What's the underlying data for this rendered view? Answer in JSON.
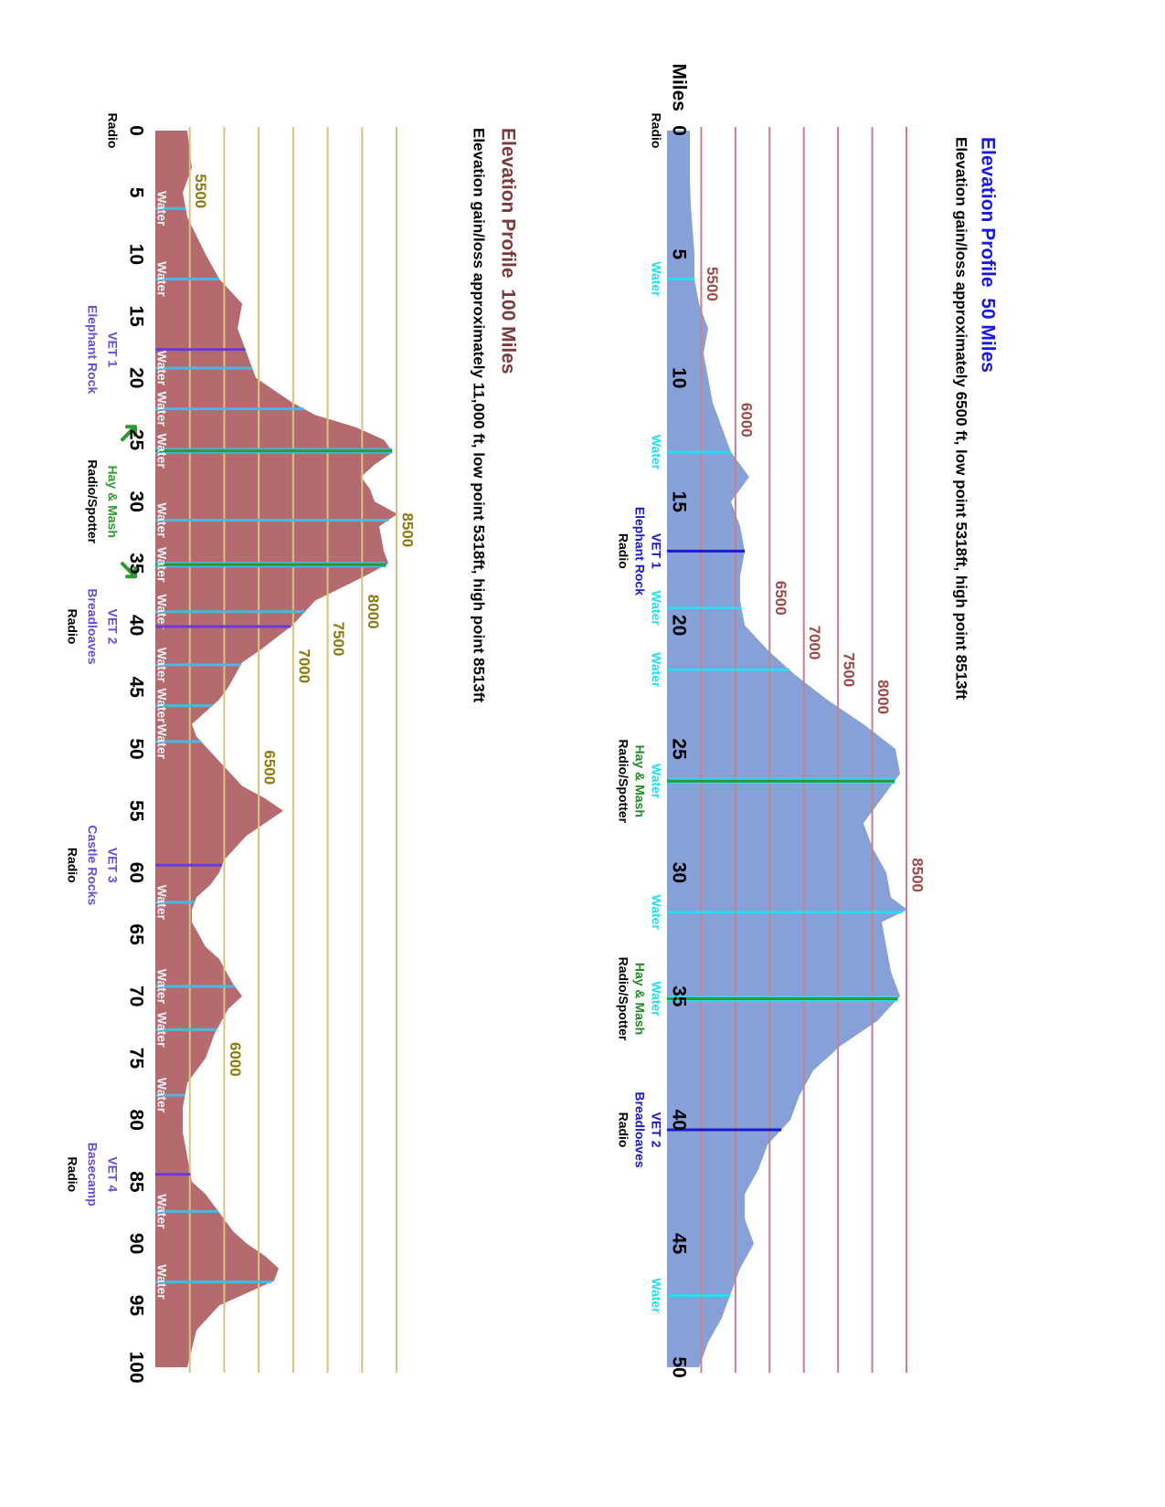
{
  "chart_data": [
    {
      "type": "area",
      "title": "Elevation Profile  50 Miles",
      "subtitle": "Elevation gain/loss approximately 6500 ft, low point 5318ft, high point 8513ft",
      "xlabel": "Miles",
      "color": "#87a0d8",
      "grid_color": "#c8808a",
      "grid": true,
      "title_color": "#1818e0",
      "tick_label_color": "#a04848",
      "line_colors": {
        "water": "#30d8f0",
        "hay": "#2a9a2a",
        "vet": "#1a1acc"
      },
      "label_colors": {
        "water": "#1ee0f0",
        "hay": "#228a22",
        "vet": "#1a1acc",
        "radio": "#000000"
      },
      "xlim": [
        0,
        50
      ],
      "xticks": [
        0,
        5,
        10,
        15,
        20,
        25,
        30,
        35,
        40,
        45,
        50
      ],
      "ylim": [
        5000,
        8500
      ],
      "yticks": [
        5500,
        6000,
        6500,
        7000,
        7500,
        8000,
        8500
      ],
      "x": [
        0,
        1,
        2,
        3,
        4,
        5,
        6,
        7,
        8,
        9,
        10,
        11,
        12,
        13,
        14,
        15,
        16,
        17,
        18,
        19,
        20,
        21,
        22,
        23,
        24,
        25,
        26,
        27,
        28,
        29,
        30,
        31,
        31.5,
        32,
        33,
        34,
        35,
        36,
        37,
        38,
        39,
        40,
        41,
        42,
        43,
        44,
        45,
        46,
        47,
        48,
        49,
        50
      ],
      "values": [
        5334,
        5334,
        5334,
        5347,
        5374,
        5401,
        5401,
        5468,
        5601,
        5534,
        5601,
        5668,
        5802,
        5935,
        6202,
        5935,
        6069,
        6136,
        6069,
        6069,
        6136,
        6470,
        6870,
        7338,
        7872,
        8340,
        8407,
        8140,
        7872,
        8006,
        8206,
        8273,
        8513,
        8140,
        8206,
        8273,
        8407,
        8073,
        7538,
        7138,
        6937,
        6804,
        6470,
        6336,
        6136,
        6136,
        6270,
        6069,
        5935,
        5802,
        5601,
        5468
      ],
      "markers": [
        {
          "mile": 0,
          "kind": "radio",
          "labels": [
            {
              "text": "Radio",
              "kind": "radio"
            }
          ]
        },
        {
          "mile": 6,
          "kind": "water",
          "labels": [
            {
              "text": "Water",
              "kind": "water"
            }
          ]
        },
        {
          "mile": 13,
          "kind": "water",
          "labels": [
            {
              "text": "Water",
              "kind": "water"
            }
          ]
        },
        {
          "mile": 17,
          "kind": "vet",
          "labels": [
            {
              "text": "VET 1",
              "kind": "vet"
            },
            {
              "text": "Elephant Rock",
              "kind": "vet"
            },
            {
              "text": "Radio",
              "kind": "radio"
            }
          ]
        },
        {
          "mile": 19.3,
          "kind": "water",
          "labels": [
            {
              "text": "Water",
              "kind": "water"
            }
          ]
        },
        {
          "mile": 21.8,
          "kind": "water",
          "labels": [
            {
              "text": "Water",
              "kind": "water"
            }
          ]
        },
        {
          "mile": 26.3,
          "kind": "hay",
          "labels": [
            {
              "text": "Water",
              "kind": "water"
            },
            {
              "text": "Hay & Mash",
              "kind": "hay"
            },
            {
              "text": "Radio/Spotter",
              "kind": "radio"
            }
          ]
        },
        {
          "mile": 31.6,
          "kind": "water",
          "labels": [
            {
              "text": "Water",
              "kind": "water"
            }
          ]
        },
        {
          "mile": 35.1,
          "kind": "hay",
          "labels": [
            {
              "text": "Water",
              "kind": "water"
            },
            {
              "text": "Hay & Mash",
              "kind": "hay"
            },
            {
              "text": "Radio/Spotter",
              "kind": "radio"
            }
          ]
        },
        {
          "mile": 40.4,
          "kind": "vet",
          "labels": [
            {
              "text": "VET 2",
              "kind": "vet"
            },
            {
              "text": "Breadloaves",
              "kind": "vet"
            },
            {
              "text": "Radio",
              "kind": "radio"
            }
          ]
        },
        {
          "mile": 47.1,
          "kind": "water",
          "labels": [
            {
              "text": "Water",
              "kind": "water"
            }
          ]
        }
      ]
    },
    {
      "type": "area",
      "title": "Elevation Profile  100 Miles",
      "subtitle": "Elevation gain/loss approximately 11,000 ft, low point 5318ft, high point 8513ft",
      "color": "#b56a6e",
      "grid_color": "#d6c47c",
      "grid": true,
      "title_color": "#7a3a3c",
      "tick_label_color": "#8a7a10",
      "line_colors": {
        "water": "#4ab8e4",
        "hay": "#2a9a2a",
        "vet": "#6a3ad8"
      },
      "label_colors": {
        "water": "#eef2f8",
        "hay": "#2a9a2a",
        "vet": "#6a4ae0",
        "radio": "#000000"
      },
      "xlim": [
        0,
        100
      ],
      "xticks": [
        0,
        5,
        10,
        15,
        20,
        25,
        30,
        35,
        40,
        45,
        50,
        55,
        60,
        65,
        70,
        75,
        80,
        85,
        90,
        95,
        100
      ],
      "ylim": [
        5000,
        8500
      ],
      "yticks": [
        5500,
        6000,
        6500,
        7000,
        7500,
        8000,
        8500
      ],
      "x": [
        0,
        3,
        5,
        7,
        10,
        12,
        14,
        16,
        17,
        20,
        22,
        23,
        24,
        25,
        26,
        27,
        28,
        29,
        30,
        31,
        32,
        34,
        35,
        36,
        38,
        40,
        42,
        43,
        45,
        46,
        48,
        49,
        51,
        53,
        54,
        55,
        56,
        57,
        59,
        60,
        61,
        62,
        63,
        64,
        66,
        67,
        69,
        70,
        71,
        73,
        75,
        77,
        79,
        81,
        83,
        85,
        86,
        88,
        89,
        90,
        91,
        92,
        93,
        95,
        97,
        100
      ],
      "values": [
        5464,
        5530,
        5398,
        5464,
        5729,
        5928,
        6260,
        6193,
        6260,
        6459,
        6989,
        7321,
        7917,
        8315,
        8447,
        8182,
        7984,
        8116,
        8182,
        8513,
        8249,
        8315,
        8381,
        8050,
        7321,
        6989,
        6525,
        6260,
        6061,
        5928,
        5530,
        5597,
        5928,
        6260,
        6591,
        6856,
        6591,
        6326,
        5995,
        5928,
        5796,
        5597,
        5530,
        5530,
        5729,
        5928,
        6127,
        6260,
        6061,
        5862,
        5729,
        5464,
        5398,
        5398,
        5464,
        5530,
        5729,
        5995,
        6127,
        6326,
        6591,
        6790,
        6724,
        5928,
        5597,
        5464
      ],
      "markers": [
        {
          "mile": 0,
          "kind": "radio",
          "labels": [
            {
              "text": "Radio",
              "kind": "radio"
            }
          ]
        },
        {
          "mile": 6.3,
          "kind": "water",
          "labels": [
            {
              "text": "Water",
              "kind": "water"
            }
          ]
        },
        {
          "mile": 12,
          "kind": "water",
          "labels": [
            {
              "text": "Water",
              "kind": "water"
            }
          ]
        },
        {
          "mile": 17.7,
          "kind": "vet",
          "labels": [
            {
              "text": "VET 1",
              "kind": "vet"
            },
            {
              "text": "Elephant Rock",
              "kind": "vet"
            }
          ]
        },
        {
          "mile": 19.2,
          "kind": "water",
          "labels": [
            {
              "text": "Water",
              "kind": "water"
            }
          ]
        },
        {
          "mile": 22.5,
          "kind": "water",
          "labels": [
            {
              "text": "Water",
              "kind": "water"
            }
          ]
        },
        {
          "mile": 25.9,
          "kind": "hay",
          "labels": [
            {
              "text": "Water",
              "kind": "water"
            }
          ]
        },
        {
          "mile": 31.5,
          "kind": "water",
          "labels": [
            {
              "text": "Water",
              "kind": "water"
            }
          ]
        },
        {
          "mile": 35.1,
          "kind": "hay",
          "labels": [
            {
              "text": "Water",
              "kind": "water"
            }
          ]
        },
        {
          "mile": 38.9,
          "kind": "water",
          "labels": [
            {
              "text": "Water",
              "kind": "water"
            }
          ]
        },
        {
          "mile": 40.1,
          "kind": "vet",
          "labels": [
            {
              "text": "VET 2",
              "kind": "vet"
            },
            {
              "text": "Breadloaves",
              "kind": "vet"
            },
            {
              "text": "Radio",
              "kind": "radio"
            }
          ]
        },
        {
          "mile": 43.2,
          "kind": "water",
          "labels": [
            {
              "text": "Water",
              "kind": "water"
            }
          ]
        },
        {
          "mile": 46.5,
          "kind": "water",
          "labels": [
            {
              "text": "Water",
              "kind": "water"
            }
          ]
        },
        {
          "mile": 49.4,
          "kind": "water",
          "labels": [
            {
              "text": "Water",
              "kind": "water"
            }
          ]
        },
        {
          "mile": 59.4,
          "kind": "vet",
          "labels": [
            {
              "text": "VET 3",
              "kind": "vet"
            },
            {
              "text": "Castle Rocks",
              "kind": "vet"
            },
            {
              "text": "Radio",
              "kind": "radio"
            }
          ]
        },
        {
          "mile": 62.4,
          "kind": "water",
          "labels": [
            {
              "text": "Water",
              "kind": "water"
            }
          ]
        },
        {
          "mile": 69.2,
          "kind": "water",
          "labels": [
            {
              "text": "Water",
              "kind": "water"
            }
          ]
        },
        {
          "mile": 72.7,
          "kind": "water",
          "labels": [
            {
              "text": "Water",
              "kind": "water"
            }
          ]
        },
        {
          "mile": 78,
          "kind": "water",
          "labels": [
            {
              "text": "Water",
              "kind": "water"
            }
          ]
        },
        {
          "mile": 84.4,
          "kind": "vet",
          "labels": [
            {
              "text": "VET 4",
              "kind": "vet"
            },
            {
              "text": "Basecamp",
              "kind": "vet"
            },
            {
              "text": "Radio",
              "kind": "radio"
            }
          ]
        },
        {
          "mile": 87.4,
          "kind": "water",
          "labels": [
            {
              "text": "Water",
              "kind": "water"
            }
          ]
        },
        {
          "mile": 93.1,
          "kind": "water",
          "labels": [
            {
              "text": "Water",
              "kind": "water"
            }
          ]
        }
      ],
      "annotations": [
        {
          "labels": [
            {
              "text": "Hay & Mash",
              "kind": "hay"
            },
            {
              "text": "Radio/Spotter",
              "kind": "radio"
            }
          ]
        }
      ]
    }
  ]
}
